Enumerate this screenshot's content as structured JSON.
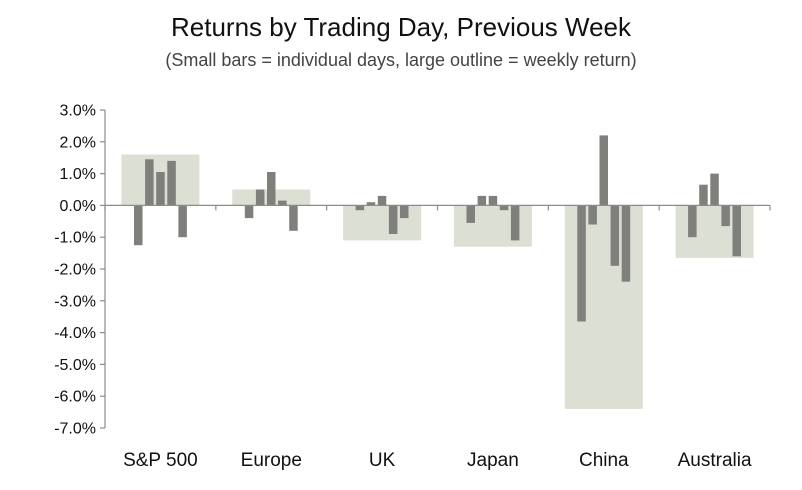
{
  "chart_data": {
    "type": "bar",
    "title": "Returns by Trading Day, Previous Week",
    "subtitle": "(Small bars = individual days, large outline = weekly return)",
    "categories": [
      "S&P 500",
      "Europe",
      "UK",
      "Japan",
      "China",
      "Australia"
    ],
    "weekly_return": [
      1.6,
      0.5,
      -1.1,
      -1.3,
      -6.4,
      -1.65
    ],
    "daily_returns": [
      [
        -1.25,
        1.45,
        1.05,
        1.4,
        -1.0
      ],
      [
        -0.4,
        0.5,
        1.05,
        0.15,
        -0.8
      ],
      [
        -0.15,
        0.1,
        0.3,
        -0.9,
        -0.4
      ],
      [
        -0.55,
        0.3,
        0.3,
        -0.15,
        -1.1
      ],
      [
        -3.65,
        -0.6,
        2.2,
        -1.9,
        -2.4
      ],
      [
        -1.0,
        0.65,
        1.0,
        -0.65,
        -1.6
      ]
    ],
    "ylim": [
      -7.0,
      3.0
    ],
    "ytick_labels": [
      "3.0%",
      "2.0%",
      "1.0%",
      "0.0%",
      "-1.0%",
      "-2.0%",
      "-3.0%",
      "-4.0%",
      "-5.0%",
      "-6.0%",
      "-7.0%"
    ],
    "xlabel": "",
    "ylabel": "",
    "grid": false,
    "colors": {
      "weekly": "#dcdfd4",
      "daily": "#7f7f7b",
      "axis": "#8c8c8c"
    }
  }
}
